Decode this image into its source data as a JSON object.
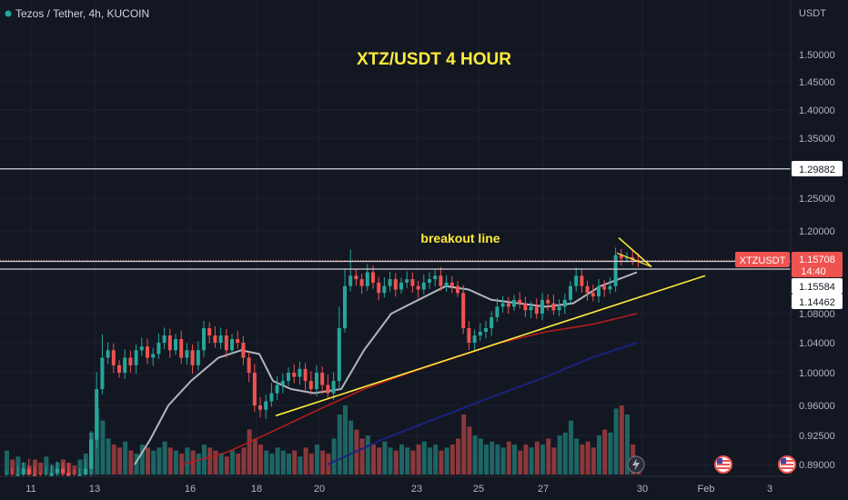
{
  "header": {
    "symbol": "Tezos / Tether, 4h, KUCOIN"
  },
  "price_axis": {
    "currency": "USDT",
    "ticks": [
      "1.50000",
      "1.45000",
      "1.40000",
      "1.35000",
      "1.25000",
      "1.20000",
      "1.08000",
      "1.04000",
      "1.00000",
      "0.96000",
      "0.92500",
      "0.89000"
    ]
  },
  "time_axis": {
    "ticks": [
      "11",
      "13",
      "16",
      "18",
      "20",
      "23",
      "25",
      "27",
      "30",
      "Feb",
      "3"
    ]
  },
  "annotations": {
    "title": "XTZ/USDT 4 HOUR",
    "breakout": "breakout line"
  },
  "price_labels": {
    "level_high": "1.29882",
    "symbol_tag": "XTZUSDT",
    "last_price": "1.15708",
    "countdown": "14:40",
    "level_mid": "1.15584",
    "level_low": "1.14462"
  },
  "colors": {
    "background": "#131722",
    "up": "#26a69a",
    "down": "#ef5350",
    "trendline": "#ffeb3b",
    "ma_fast": "#b2b5be",
    "ma_mid": "#b71c1c",
    "ma_slow": "#1a237e"
  },
  "chart_data": {
    "type": "candlestick",
    "x_ticks": [
      "11",
      "13",
      "16",
      "18",
      "20",
      "23",
      "25",
      "27",
      "30",
      "Feb",
      "3"
    ],
    "y_ticks": [
      1.5,
      1.45,
      1.4,
      1.35,
      1.25,
      1.2,
      1.08,
      1.04,
      1.0,
      0.96,
      0.925,
      0.89
    ],
    "horizontal_levels": [
      1.29882,
      1.15708,
      1.15584,
      1.14462
    ],
    "last_price": 1.15708,
    "price_path": [
      0.875,
      0.872,
      0.878,
      0.885,
      0.878,
      0.872,
      0.868,
      0.875,
      0.88,
      0.885,
      0.88,
      0.874,
      0.87,
      0.878,
      0.885,
      0.92,
      0.98,
      1.02,
      1.03,
      1.01,
      1.0,
      1.02,
      1.01,
      1.03,
      1.035,
      1.02,
      1.025,
      1.04,
      1.05,
      1.03,
      1.045,
      1.02,
      1.03,
      1.01,
      1.03,
      1.06,
      1.05,
      1.04,
      1.05,
      1.03,
      1.045,
      1.04,
      1.02,
      1.0,
      0.96,
      0.955,
      0.965,
      0.975,
      0.985,
      0.99,
      1.0,
      0.995,
      1.005,
      0.99,
      0.98,
      1.0,
      0.985,
      0.975,
      0.99,
      1.06,
      1.12,
      1.135,
      1.13,
      1.12,
      1.14,
      1.125,
      1.11,
      1.12,
      1.13,
      1.115,
      1.125,
      1.13,
      1.12,
      1.115,
      1.125,
      1.13,
      1.135,
      1.12,
      1.125,
      1.12,
      1.11,
      1.06,
      1.04,
      1.05,
      1.055,
      1.06,
      1.075,
      1.09,
      1.095,
      1.09,
      1.1,
      1.095,
      1.085,
      1.09,
      1.08,
      1.1,
      1.095,
      1.085,
      1.09,
      1.1,
      1.12,
      1.135,
      1.12,
      1.11,
      1.105,
      1.12,
      1.115,
      1.12,
      1.165,
      1.16,
      1.162,
      1.158,
      1.157
    ],
    "volume_path": [
      0.8,
      0.5,
      0.6,
      0.4,
      0.3,
      0.5,
      0.4,
      0.6,
      0.3,
      0.4,
      0.5,
      0.4,
      0.3,
      0.5,
      0.7,
      1.4,
      2.2,
      1.8,
      1.2,
      1.0,
      0.9,
      1.1,
      0.8,
      0.7,
      1.0,
      0.9,
      0.8,
      0.9,
      1.1,
      0.9,
      0.8,
      0.7,
      0.9,
      0.8,
      0.7,
      1.0,
      0.9,
      0.8,
      0.7,
      0.6,
      0.8,
      0.7,
      0.9,
      1.5,
      1.2,
      1.0,
      0.8,
      0.7,
      0.9,
      0.8,
      0.7,
      0.8,
      0.6,
      0.9,
      0.7,
      1.0,
      0.8,
      0.7,
      1.2,
      2.0,
      2.3,
      1.8,
      1.5,
      1.2,
      1.3,
      1.0,
      0.9,
      1.1,
      0.9,
      0.8,
      1.0,
      0.9,
      0.8,
      1.0,
      1.1,
      0.9,
      1.0,
      0.8,
      0.9,
      1.0,
      1.2,
      2.0,
      1.6,
      1.3,
      1.2,
      1.0,
      1.1,
      1.0,
      0.9,
      1.1,
      1.0,
      0.8,
      1.0,
      0.9,
      1.1,
      1.0,
      1.2,
      0.9,
      1.3,
      1.4,
      1.8,
      1.2,
      1.0,
      1.1,
      0.9,
      1.3,
      1.5,
      1.4,
      2.2,
      2.3,
      2.0,
      1.0,
      0.4
    ],
    "ma_fast": [
      [
        148,
        0.89
      ],
      [
        165,
        0.92
      ],
      [
        185,
        0.96
      ],
      [
        210,
        0.99
      ],
      [
        240,
        1.02
      ],
      [
        265,
        1.03
      ],
      [
        285,
        1.025
      ],
      [
        300,
        0.99
      ],
      [
        320,
        0.98
      ],
      [
        345,
        0.975
      ],
      [
        375,
        0.98
      ],
      [
        400,
        1.03
      ],
      [
        430,
        1.08
      ],
      [
        460,
        1.1
      ],
      [
        490,
        1.12
      ],
      [
        515,
        1.115
      ],
      [
        540,
        1.1
      ],
      [
        570,
        1.095
      ],
      [
        600,
        1.09
      ],
      [
        630,
        1.095
      ],
      [
        660,
        1.12
      ],
      [
        700,
        1.14
      ]
    ],
    "ma_mid": [
      [
        200,
        0.89
      ],
      [
        250,
        0.905
      ],
      [
        300,
        0.93
      ],
      [
        350,
        0.955
      ],
      [
        400,
        0.98
      ],
      [
        450,
        1.0
      ],
      [
        500,
        1.02
      ],
      [
        550,
        1.04
      ],
      [
        600,
        1.055
      ],
      [
        650,
        1.065
      ],
      [
        700,
        1.08
      ]
    ],
    "ma_slow": [
      [
        360,
        0.89
      ],
      [
        420,
        0.92
      ],
      [
        480,
        0.945
      ],
      [
        540,
        0.97
      ],
      [
        600,
        0.995
      ],
      [
        650,
        1.02
      ],
      [
        700,
        1.04
      ]
    ],
    "trendlines": [
      {
        "from": [
          303,
          0.948
        ],
        "to": [
          775,
          1.135
        ]
      },
      {
        "from": [
          680,
          1.19
        ],
        "to": [
          716,
          1.148
        ]
      }
    ]
  }
}
